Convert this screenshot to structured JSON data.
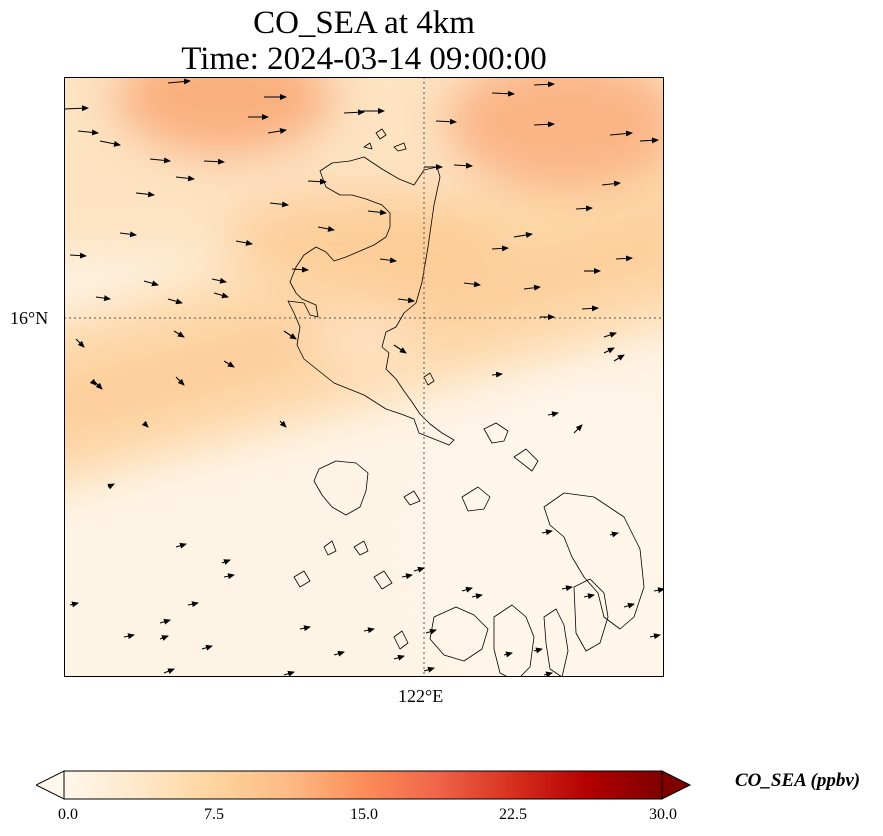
{
  "title": {
    "line1": "CO_SEA at 4km",
    "line2": "Time: 2024-03-14 09:00:00"
  },
  "axes": {
    "lat_tick_label": "16°N",
    "lon_tick_label": "122°E",
    "gridlines": "dotted"
  },
  "colorbar": {
    "label": "CO_SEA (ppbv)",
    "ticks": [
      "0.0",
      "7.5",
      "15.0",
      "22.5",
      "30.0"
    ],
    "min": 0.0,
    "max": 30.0,
    "extend": "both",
    "colormap": "OrRd",
    "colors": [
      "#fff7ec",
      "#fee8c8",
      "#fdd49e",
      "#fdbb84",
      "#fc8d59",
      "#ef6548",
      "#d7301f",
      "#b30000",
      "#7f0000"
    ]
  },
  "chart_data": {
    "type": "heatmap",
    "title": "CO_SEA at 4km",
    "subtitle": "Time: 2024-03-14 09:00:00",
    "variable": "CO_SEA",
    "units": "ppbv",
    "value_range": [
      0.0,
      30.0
    ],
    "approx_max_value": 13,
    "high_regions": [
      "upper-left corner (~12 ppbv)",
      "upper-right corner (~12 ppbv)",
      "diagonal band across northern Luzon (~8 ppbv)"
    ],
    "low_regions": [
      "south-east area (~1 ppbv)"
    ],
    "wind_vectors": "mostly eastward, turning south-east to north-east in the south",
    "overlay": "coastlines of Luzon and the central Philippines"
  }
}
